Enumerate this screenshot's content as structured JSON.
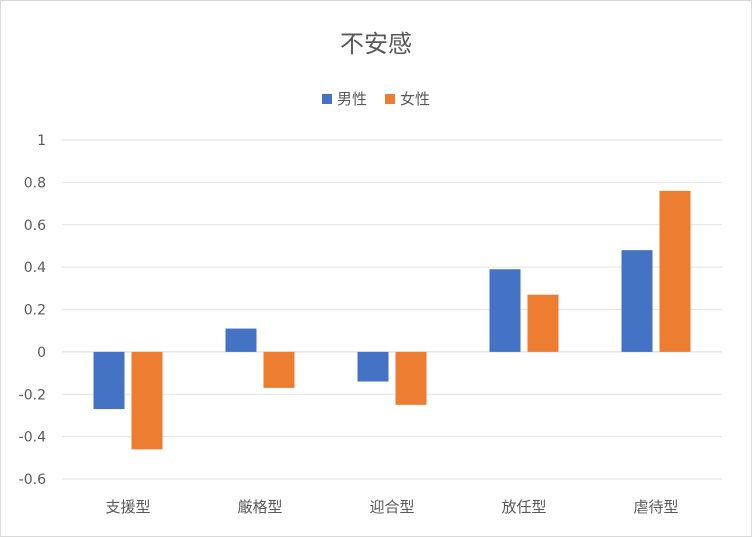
{
  "chart_data": {
    "type": "bar",
    "title": "不安感",
    "categories": [
      "支援型",
      "厳格型",
      "迎合型",
      "放任型",
      "虐待型"
    ],
    "series": [
      {
        "name": "男性",
        "color": "#4472C4",
        "values": [
          -0.27,
          0.11,
          -0.14,
          0.39,
          0.48
        ]
      },
      {
        "name": "女性",
        "color": "#ED7D31",
        "values": [
          -0.46,
          -0.17,
          -0.25,
          0.27,
          0.76
        ]
      }
    ],
    "ylim": [
      -0.6,
      1
    ],
    "yticks": [
      "1",
      "0.8",
      "0.6",
      "0.4",
      "0.2",
      "0",
      "-0.2",
      "-0.4",
      "-0.6"
    ],
    "ytick_values": [
      1,
      0.8,
      0.6,
      0.4,
      0.2,
      0,
      -0.2,
      -0.4,
      -0.6
    ],
    "xlabel": "",
    "ylabel": "",
    "grid": true,
    "legend_position": "top"
  }
}
